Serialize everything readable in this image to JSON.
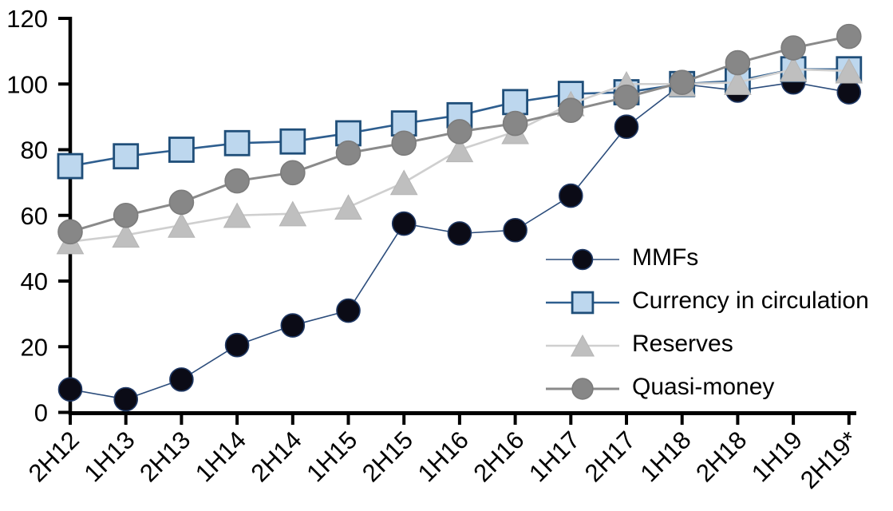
{
  "chart_data": {
    "type": "line",
    "title": "",
    "categories": [
      "2H12",
      "1H13",
      "2H13",
      "1H14",
      "2H14",
      "1H15",
      "2H15",
      "1H16",
      "2H16",
      "1H17",
      "2H17",
      "1H18",
      "2H18",
      "1H19",
      "2H19*"
    ],
    "series": [
      {
        "name": "MMFs",
        "marker": "circle",
        "marker_fill": "#0b0b16",
        "marker_stroke": "#1f3864",
        "line_color": "#2c4d7c",
        "line_width": 1.6,
        "marker_size": 29,
        "values": [
          7,
          4,
          10,
          20.5,
          26.5,
          31,
          57.5,
          54.5,
          55.5,
          66,
          87,
          100,
          98,
          100.5,
          97.5
        ]
      },
      {
        "name": "Currency in circulation",
        "marker": "square",
        "marker_fill": "#bdd7ee",
        "marker_stroke": "#1f4e79",
        "line_color": "#2e5e8f",
        "line_width": 2.6,
        "marker_size": 30,
        "values": [
          75,
          78,
          80,
          82,
          82.5,
          85,
          88,
          90.5,
          94.5,
          97,
          97.5,
          100,
          101,
          104.5,
          104.5
        ]
      },
      {
        "name": "Reserves",
        "marker": "triangle",
        "marker_fill": "#bfbfbf",
        "marker_stroke": "#b5b5b5",
        "line_color": "#cfcfcf",
        "line_width": 2.6,
        "marker_size": 33,
        "values": [
          52,
          54,
          57,
          60,
          60.5,
          62.5,
          70,
          80,
          85.5,
          94,
          100,
          100,
          100.5,
          104.5,
          104
        ]
      },
      {
        "name": "Quasi-money",
        "marker": "circle",
        "marker_fill": "#878787",
        "marker_stroke": "#7c7c7c",
        "line_color": "#8a8a8a",
        "line_width": 3,
        "marker_size": 30,
        "values": [
          55,
          60,
          64,
          70.5,
          73,
          79,
          82,
          85.5,
          88,
          92,
          96,
          100.5,
          106.5,
          111,
          114.5
        ]
      }
    ],
    "y_axis": {
      "min": 0,
      "max": 120,
      "ticks": [
        0,
        20,
        40,
        60,
        80,
        100,
        120
      ]
    },
    "x_axis": {
      "label_rotation": -45
    },
    "legend_position": "inside-right",
    "grid": false,
    "axis_color": "#000000",
    "background_color": "#ffffff"
  }
}
